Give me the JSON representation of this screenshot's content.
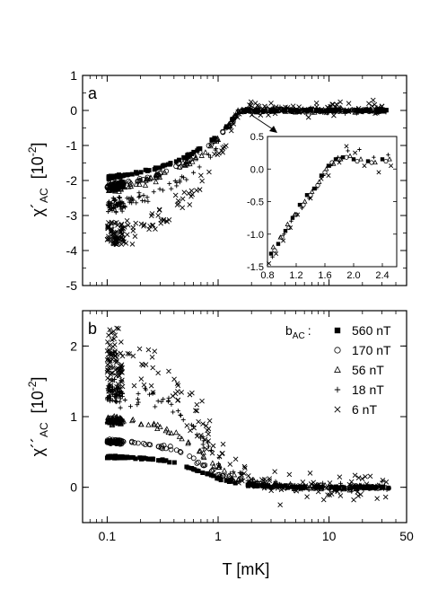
{
  "figure": {
    "xlabel": "T [mK]"
  },
  "chart_data": [
    {
      "type": "scatter",
      "panel_label": "a",
      "ylabel_main": "χ´",
      "ylabel_sub": "AC",
      "ylabel_unit": "[10",
      "ylabel_exp": "-2",
      "ylabel_close": "]",
      "xscale": "log",
      "xlim": [
        0.06,
        50
      ],
      "ylim": [
        -5,
        1
      ],
      "xticks": [
        0.1,
        1,
        10,
        50
      ],
      "xtick_labels": [
        "0.1",
        "1",
        "10",
        "50"
      ],
      "yticks": [
        -5,
        -4,
        -3,
        -2,
        -1,
        0,
        1
      ],
      "ytick_labels": [
        "-5",
        "-4",
        "-3",
        "-2",
        "-1",
        "0",
        "1"
      ],
      "legend": "none",
      "series": [
        {
          "marker": "square-filled",
          "low_T_value": -2.1,
          "transition_T": 1.55,
          "high_T_value": 0.0
        },
        {
          "marker": "circle-open",
          "low_T_value": -2.35,
          "transition_T": 1.55,
          "high_T_value": 0.0
        },
        {
          "marker": "triangle-open",
          "low_T_value": -2.45,
          "transition_T": 1.55,
          "high_T_value": 0.0
        },
        {
          "marker": "plus",
          "low_T_value": -3.0,
          "transition_T": 1.55,
          "high_T_value": 0.0
        },
        {
          "marker": "cross",
          "low_T_value": -4.0,
          "transition_T": 1.55,
          "high_T_value": 0.05
        }
      ],
      "inset": {
        "xscale": "linear",
        "xlim": [
          0.8,
          2.6
        ],
        "ylim": [
          -1.5,
          0.5
        ],
        "xticks": [
          0.8,
          1.2,
          1.6,
          2.0,
          2.4
        ],
        "xtick_labels": [
          "0.8",
          "1.2",
          "1.6",
          "2.0",
          "2.4"
        ],
        "yticks": [
          -1.5,
          -1.0,
          -0.5,
          0.0,
          0.5
        ],
        "ytick_labels": [
          "-1.5",
          "-1.0",
          "-0.5",
          "0.0",
          "0.5"
        ],
        "series": [
          {
            "marker": "square-filled",
            "x": [
              0.85,
              0.95,
              1.05,
              1.15,
              1.25,
              1.35,
              1.45,
              1.55,
              1.65,
              1.75,
              1.85,
              2.0,
              2.2,
              2.4
            ],
            "y": [
              -1.3,
              -1.15,
              -0.95,
              -0.75,
              -0.55,
              -0.4,
              -0.3,
              -0.1,
              0.05,
              0.15,
              0.18,
              0.15,
              0.12,
              0.15
            ]
          },
          {
            "marker": "circle-open",
            "x": [
              0.9,
              1.0,
              1.1,
              1.2,
              1.3,
              1.4,
              1.5,
              1.6,
              1.7,
              1.8,
              1.9,
              2.05,
              2.25,
              2.45
            ],
            "y": [
              -1.25,
              -1.05,
              -0.9,
              -0.7,
              -0.55,
              -0.4,
              -0.25,
              -0.05,
              0.1,
              0.15,
              0.18,
              0.12,
              0.1,
              0.12
            ]
          },
          {
            "marker": "triangle-open",
            "x": [
              0.88,
              0.98,
              1.08,
              1.18,
              1.32,
              1.42,
              1.52,
              1.62,
              1.72,
              1.82,
              1.95,
              2.1,
              2.3,
              2.5
            ],
            "y": [
              -1.2,
              -1.05,
              -0.85,
              -0.7,
              -0.5,
              -0.35,
              -0.2,
              0.0,
              0.08,
              0.15,
              0.2,
              0.15,
              0.1,
              0.15
            ]
          },
          {
            "marker": "plus",
            "x": [
              0.87,
              1.03,
              1.13,
              1.28,
              1.38,
              1.48,
              1.58,
              1.68,
              1.78,
              1.92,
              2.08,
              2.28,
              2.48
            ],
            "y": [
              -1.35,
              -1.0,
              -0.8,
              -0.6,
              -0.45,
              -0.3,
              -0.1,
              0.05,
              0.18,
              0.28,
              0.3,
              0.18,
              0.22
            ]
          },
          {
            "marker": "cross",
            "x": [
              0.82,
              0.92,
              1.02,
              1.12,
              1.22,
              1.4,
              1.55,
              1.65,
              1.8,
              1.9,
              2.02,
              2.15,
              2.35,
              2.52
            ],
            "y": [
              -1.45,
              -1.3,
              -1.1,
              -0.9,
              -0.7,
              -0.45,
              -0.15,
              -0.1,
              0.1,
              0.35,
              0.25,
              0.05,
              -0.05,
              0.05
            ]
          }
        ]
      }
    },
    {
      "type": "scatter",
      "panel_label": "b",
      "ylabel_main": "χ´´",
      "ylabel_sub": "AC",
      "ylabel_unit": "[10",
      "ylabel_exp": "-2",
      "ylabel_close": "]",
      "xscale": "log",
      "xlim": [
        0.06,
        50
      ],
      "ylim": [
        -0.5,
        2.5
      ],
      "xticks": [
        0.1,
        1,
        10,
        50
      ],
      "xtick_labels": [
        "0.1",
        "1",
        "10",
        "50"
      ],
      "yticks": [
        0,
        1,
        2
      ],
      "ytick_labels": [
        "0",
        "1",
        "2"
      ],
      "legend": "top-right",
      "legend_title_main": "b",
      "legend_title_sub": "AC",
      "legend_title_colon": ":",
      "series": [
        {
          "name": "560 nT",
          "marker": "square-filled",
          "low_T_value": 0.43
        },
        {
          "name": "170 nT",
          "marker": "circle-open",
          "low_T_value": 0.65
        },
        {
          "name": "56 nT",
          "marker": "triangle-open",
          "low_T_value": 0.95
        },
        {
          "name": "18 nT",
          "marker": "plus",
          "low_T_value": 1.35
        },
        {
          "name": "6 nT",
          "marker": "cross",
          "low_T_value": 1.8
        }
      ]
    }
  ]
}
